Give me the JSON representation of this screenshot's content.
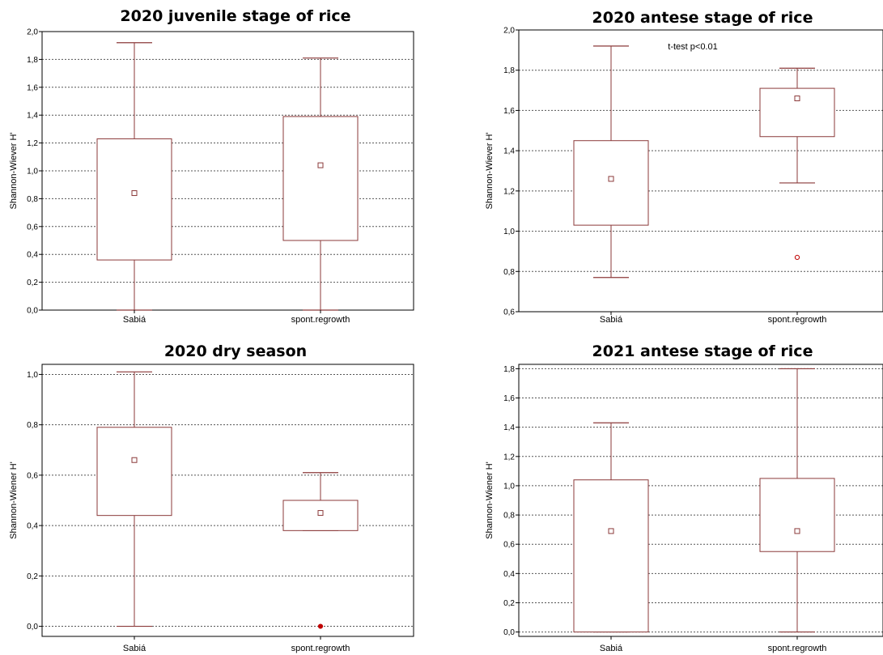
{
  "colors": {
    "box": "#8b3a3a",
    "grid": "#555555",
    "axis": "#000000",
    "outlier": "#c00000"
  },
  "chart_data": [
    {
      "type": "box",
      "title": "2020 juvenile stage of rice",
      "ylabel": "Shannon-Wiever H'",
      "ylim": [
        0.0,
        2.0
      ],
      "yticks": [
        "0,0",
        "0,2",
        "0,4",
        "0,6",
        "0,8",
        "1,0",
        "1,2",
        "1,4",
        "1,6",
        "1,8",
        "2,0"
      ],
      "categories": [
        "Sabiá",
        "spont.regrowth"
      ],
      "boxes": [
        {
          "whisker_low": 0.0,
          "q1": 0.36,
          "q3": 1.23,
          "whisker_high": 1.92,
          "mean": 0.84,
          "outliers": []
        },
        {
          "whisker_low": 0.0,
          "q1": 0.5,
          "q3": 1.39,
          "whisker_high": 1.81,
          "mean": 1.04,
          "outliers": []
        }
      ],
      "annotation": ""
    },
    {
      "type": "box",
      "title": "2020 antese stage of rice",
      "ylabel": "Shannon-Wiever H'",
      "ylim": [
        0.6,
        2.0
      ],
      "yticks": [
        "0,6",
        "0,8",
        "1,0",
        "1,2",
        "1,4",
        "1,6",
        "1,8",
        "2,0"
      ],
      "categories": [
        "Sabiá",
        "spont.regrowth"
      ],
      "boxes": [
        {
          "whisker_low": 0.77,
          "q1": 1.03,
          "q3": 1.45,
          "whisker_high": 1.92,
          "mean": 1.26,
          "outliers": []
        },
        {
          "whisker_low": 1.24,
          "q1": 1.47,
          "q3": 1.71,
          "whisker_high": 1.81,
          "mean": 1.66,
          "outliers": [
            0.87
          ]
        }
      ],
      "annotation": "t-test p<0.01"
    },
    {
      "type": "box",
      "title": "2020 dry season",
      "ylabel": "Shannon-Wiener H'",
      "ylim": [
        -0.04,
        1.04
      ],
      "yticks": [
        "0,0",
        "0,2",
        "0,4",
        "0,6",
        "0,8",
        "1,0"
      ],
      "tickvals": [
        0.0,
        0.2,
        0.4,
        0.6,
        0.8,
        1.0
      ],
      "categories": [
        "Sabiá",
        "spont.regrowth"
      ],
      "boxes": [
        {
          "whisker_low": 0.0,
          "q1": 0.44,
          "q3": 0.79,
          "whisker_high": 1.01,
          "mean": 0.66,
          "outliers": []
        },
        {
          "whisker_low": 0.38,
          "q1": 0.38,
          "q3": 0.5,
          "whisker_high": 0.61,
          "mean": 0.45,
          "outliers": [
            0.0
          ]
        }
      ],
      "annotation": ""
    },
    {
      "type": "box",
      "title": "2021 antese stage of rice",
      "ylabel": "Shannon-Wiener H'",
      "ylim": [
        -0.03,
        1.83
      ],
      "yticks": [
        "0,0",
        "0,2",
        "0,4",
        "0,6",
        "0,8",
        "1,0",
        "1,2",
        "1,4",
        "1,6",
        "1,8"
      ],
      "tickvals": [
        0.0,
        0.2,
        0.4,
        0.6,
        0.8,
        1.0,
        1.2,
        1.4,
        1.6,
        1.8
      ],
      "categories": [
        "Sabiá",
        "spont.regrowth"
      ],
      "boxes": [
        {
          "whisker_low": 0.0,
          "q1": 0.0,
          "q3": 1.04,
          "whisker_high": 1.43,
          "mean": 0.69,
          "outliers": []
        },
        {
          "whisker_low": 0.0,
          "q1": 0.55,
          "q3": 1.05,
          "whisker_high": 1.8,
          "mean": 0.69,
          "outliers": []
        }
      ],
      "annotation": ""
    }
  ]
}
